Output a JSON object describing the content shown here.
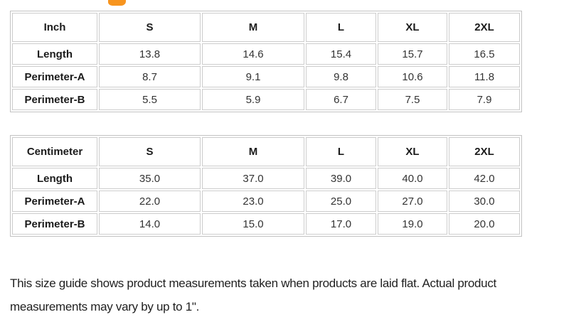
{
  "page": {
    "background_color": "#ffffff",
    "table_border_color": "#cccccc",
    "clipped_heading": {
      "color": "#f7941e"
    }
  },
  "tables": [
    {
      "unit_header": "Inch",
      "size_headers": [
        "S",
        "M",
        "L",
        "XL",
        "2XL"
      ],
      "rows": [
        {
          "label": "Length",
          "values": [
            "13.8",
            "14.6",
            "15.4",
            "15.7",
            "16.5"
          ]
        },
        {
          "label": "Perimeter-A",
          "values": [
            "8.7",
            "9.1",
            "9.8",
            "10.6",
            "11.8"
          ]
        },
        {
          "label": "Perimeter-B",
          "values": [
            "5.5",
            "5.9",
            "6.7",
            "7.5",
            "7.9"
          ]
        }
      ]
    },
    {
      "unit_header": "Centimeter",
      "size_headers": [
        "S",
        "M",
        "L",
        "XL",
        "2XL"
      ],
      "rows": [
        {
          "label": "Length",
          "values": [
            "35.0",
            "37.0",
            "39.0",
            "40.0",
            "42.0"
          ]
        },
        {
          "label": "Perimeter-A",
          "values": [
            "22.0",
            "23.0",
            "25.0",
            "27.0",
            "30.0"
          ]
        },
        {
          "label": "Perimeter-B",
          "values": [
            "14.0",
            "15.0",
            "17.0",
            "19.0",
            "20.0"
          ]
        }
      ]
    }
  ],
  "note": "This size guide shows product measurements taken when products are laid flat. Actual product measurements may vary by up to 1\"."
}
